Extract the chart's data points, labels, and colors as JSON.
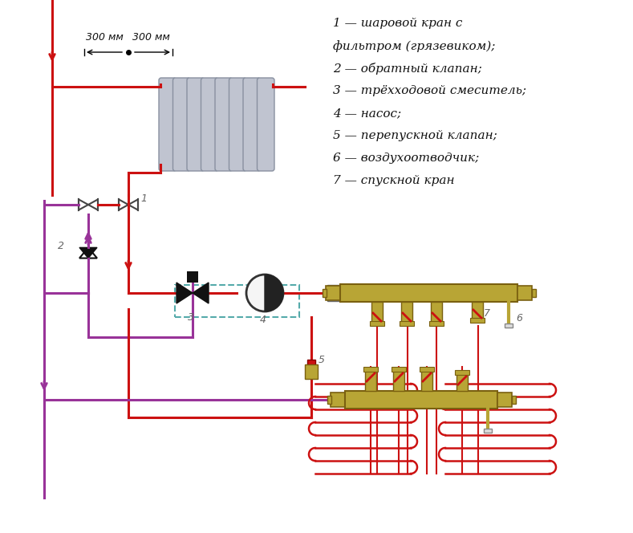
{
  "bg_color": "#ffffff",
  "pipe_red": "#cc1111",
  "pipe_purple": "#993399",
  "pipe_dashed": "#55aaaa",
  "brass_color": "#b8a535",
  "radiator_color": "#c0c4d0",
  "radiator_edge": "#8890a0",
  "legend_lines": [
    "1 — шаровой кран с",
    "фильтром (грязевиком);",
    "2 — обратный клапан;",
    "3 — трёхходовой смеситель;",
    "4 — насос;",
    "5 — перепускной клапан;",
    "6 — воздухоотводчик;",
    "7 — спускной кран"
  ],
  "lw": 2.2,
  "lw_thin": 1.5,
  "lw_coil": 1.8
}
